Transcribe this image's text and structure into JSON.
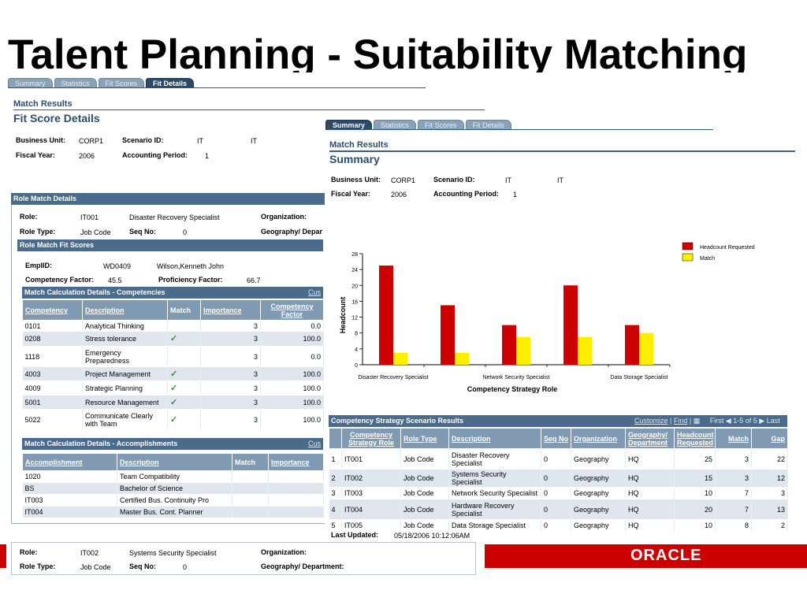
{
  "slide_title": "Talent Planning - Suitability Matching",
  "left_screen": {
    "tabs": [
      "Summary",
      "Statistics",
      "Fit Scores",
      "Fit Details"
    ],
    "active_tab": "Fit Details",
    "header_small": "Match Results",
    "header_large": "Fit Score Details",
    "business_unit_label": "Business Unit:",
    "business_unit_value": "CORP1",
    "scenario_label": "Scenario ID:",
    "scenario_value_1": "IT",
    "scenario_value_2": "IT",
    "fiscal_year_label": "Fiscal Year:",
    "fiscal_year_value": "2006",
    "accounting_period_label": "Accounting Period:",
    "accounting_period_value": "1",
    "role_match_details": {
      "title": "Role Match Details",
      "role_label": "Role:",
      "role_id": "IT001",
      "role_desc": "Disaster Recovery Specialist",
      "organization_label": "Organization:",
      "role_type_label": "Role Type:",
      "role_type_value": "Job Code",
      "seq_label": "Seq No:",
      "seq_value": "0",
      "geo_label": "Geography/ Depar"
    },
    "role_match_fit_scores": {
      "title": "Role Match Fit Scores",
      "emplid_label": "EmplID:",
      "emplid_value": "WD0409",
      "employee_name": "Wilson,Kenneth John",
      "competency_factor_label": "Competency Factor:",
      "competency_factor_value": "45.5",
      "proficiency_factor_label": "Proficiency Factor:",
      "proficiency_factor_value": "66.7"
    },
    "competencies": {
      "title": "Match Calculation Details - Competencies",
      "customize": "Cus",
      "columns": [
        "Competency",
        "Description",
        "Match",
        "Importance",
        "Competency Factor"
      ],
      "rows": [
        {
          "code": "0101",
          "desc": "Analytical Thinking",
          "match": "",
          "importance": "3",
          "factor": "0.0"
        },
        {
          "code": "0208",
          "desc": "Stress tolerance",
          "match": "✓",
          "importance": "3",
          "factor": "100.0"
        },
        {
          "code": "1118",
          "desc": "Emergency Preparedness",
          "match": "",
          "importance": "3",
          "factor": "0.0"
        },
        {
          "code": "4003",
          "desc": "Project Management",
          "match": "✓",
          "importance": "3",
          "factor": "100.0"
        },
        {
          "code": "4009",
          "desc": "Strategic Planning",
          "match": "✓",
          "importance": "3",
          "factor": "100.0"
        },
        {
          "code": "5001",
          "desc": "Resource Management",
          "match": "✓",
          "importance": "3",
          "factor": "100.0"
        },
        {
          "code": "5022",
          "desc": "Communicate Clearly with Team",
          "match": "✓",
          "importance": "3",
          "factor": "100.0"
        }
      ]
    },
    "accomplishments": {
      "title": "Match Calculation Details - Accomplishments",
      "customize": "Cus",
      "columns": [
        "Accomplishment",
        "Description",
        "Match",
        "Importance"
      ],
      "rows": [
        {
          "code": "1020",
          "desc": "Team Compatibility"
        },
        {
          "code": "BS",
          "desc": "Bachelor of Science"
        },
        {
          "code": "IT003",
          "desc": "Certified Bus. Continuity Pro"
        },
        {
          "code": "IT004",
          "desc": "Master Bus. Cont. Planner"
        }
      ]
    },
    "role2": {
      "role_label": "Role:",
      "role_id": "IT002",
      "role_desc": "Systems Security Specialist",
      "organization_label": "Organization:",
      "role_type_label": "Role Type:",
      "role_type_value": "Job Code",
      "seq_label": "Seq No:",
      "seq_value": "0",
      "geo_label": "Geography/ Department:"
    }
  },
  "right_screen": {
    "tabs": [
      "Summary",
      "Statistics",
      "Fit Scores",
      "Fit Details"
    ],
    "active_tab": "Summary",
    "header_small": "Match Results",
    "header_large": "Summary",
    "business_unit_label": "Business Unit:",
    "business_unit_value": "CORP1",
    "scenario_label": "Scenario ID:",
    "scenario_value_1": "IT",
    "scenario_value_2": "IT",
    "fiscal_year_label": "Fiscal Year:",
    "fiscal_year_value": "2006",
    "accounting_period_label": "Accounting Period:",
    "accounting_period_value": "1",
    "scenario_results": {
      "title": "Competency Strategy Scenario Results",
      "customize": "Customize",
      "find": "Find",
      "nav_first": "First",
      "nav_range": "1-5 of 5",
      "nav_last": "Last",
      "columns": [
        "Competency Strategy Role",
        "Role Type",
        "Description",
        "Seq No",
        "Organization",
        "Geography/ Department",
        "Headcount Requested",
        "Match",
        "Gap"
      ],
      "rows": [
        {
          "n": "1",
          "role": "IT001",
          "type": "Job Code",
          "desc": "Disaster Recovery Specialist",
          "seq": "0",
          "org": "Geography",
          "geo": "HQ",
          "hc": "25",
          "match": "3",
          "gap": "22"
        },
        {
          "n": "2",
          "role": "IT002",
          "type": "Job Code",
          "desc": "Systems Security Specialist",
          "seq": "0",
          "org": "Geography",
          "geo": "HQ",
          "hc": "15",
          "match": "3",
          "gap": "12"
        },
        {
          "n": "3",
          "role": "IT003",
          "type": "Job Code",
          "desc": "Network Security Specialist",
          "seq": "0",
          "org": "Geography",
          "geo": "HQ",
          "hc": "10",
          "match": "7",
          "gap": "3"
        },
        {
          "n": "4",
          "role": "IT004",
          "type": "Job Code",
          "desc": "Hardware Recovery Specialist",
          "seq": "0",
          "org": "Geography",
          "geo": "HQ",
          "hc": "20",
          "match": "7",
          "gap": "13"
        },
        {
          "n": "5",
          "role": "IT005",
          "type": "Job Code",
          "desc": "Data Storage Specialist",
          "seq": "0",
          "org": "Geography",
          "geo": "HQ",
          "hc": "10",
          "match": "8",
          "gap": "2"
        }
      ]
    },
    "last_updated_label": "Last Updated:",
    "last_updated_value": "05/18/2006 10:12:06AM"
  },
  "brand": "ORACLE",
  "colors": {
    "headcount": "#cc0000",
    "match": "#ffee00",
    "header_blue": "#4a6b8c",
    "oracle_red": "#cc0000"
  },
  "chart_data": {
    "type": "bar",
    "categories": [
      "Disaster Recovery Specialist",
      "Systems Security Specialist",
      "Network Security Specialist",
      "Hardware Recovery Specialist",
      "Data Storage Specialist"
    ],
    "x_tick_labels_shown": [
      "Disaster Recovery Specialist",
      "",
      "Network Security Specialist",
      "",
      "Data Storage Specialist"
    ],
    "series": [
      {
        "name": "Headcount Requested",
        "values": [
          25,
          15,
          10,
          20,
          10
        ]
      },
      {
        "name": "Match",
        "values": [
          3,
          3,
          7,
          7,
          8
        ]
      }
    ],
    "xlabel": "Competency Strategy Role",
    "ylabel": "Headcount",
    "ylim": [
      0,
      28
    ],
    "yticks": [
      0,
      4,
      8,
      12,
      16,
      20,
      24,
      28
    ],
    "legend": "top-right"
  }
}
